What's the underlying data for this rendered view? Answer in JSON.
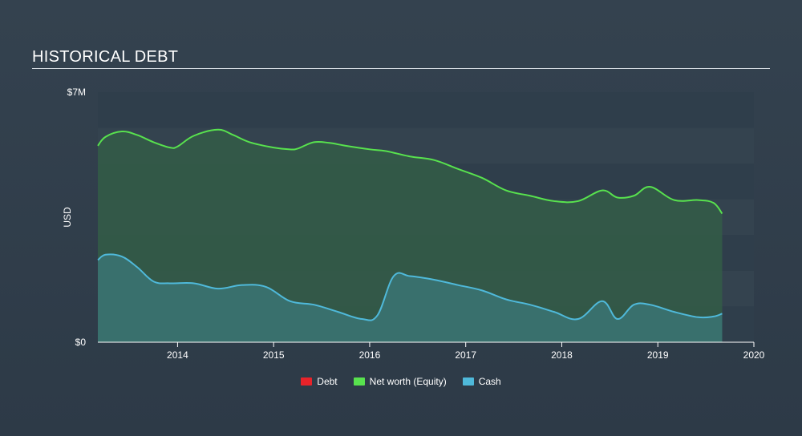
{
  "title": "HISTORICAL DEBT",
  "chart_data": {
    "type": "area",
    "title": "HISTORICAL DEBT",
    "ylabel": "USD",
    "xlabel": "",
    "ylim": [
      0,
      7000000
    ],
    "xlim": [
      2013.17,
      2020.0
    ],
    "y_tick_labels": [
      "$0",
      "$7M"
    ],
    "x_tick_labels": [
      "2014",
      "2015",
      "2016",
      "2017",
      "2018",
      "2019",
      "2020"
    ],
    "x_ticks": [
      2014,
      2015,
      2016,
      2017,
      2018,
      2019,
      2020
    ],
    "grid": true,
    "legend_position": "bottom",
    "colors": {
      "Debt": "#e8232a",
      "Net worth (Equity)": "#58e24e",
      "Cash": "#4fb9da",
      "equity_fill": "#335b47",
      "cash_fill": "#3b7474"
    },
    "series": [
      {
        "name": "Debt",
        "x": [],
        "values": []
      },
      {
        "name": "Net worth (Equity)",
        "x": [
          2013.17,
          2013.25,
          2013.42,
          2013.58,
          2013.75,
          2013.92,
          2014.0,
          2014.17,
          2014.42,
          2014.58,
          2014.75,
          2015.0,
          2015.17,
          2015.25,
          2015.42,
          2015.58,
          2015.75,
          2016.0,
          2016.17,
          2016.42,
          2016.67,
          2016.92,
          2017.17,
          2017.42,
          2017.67,
          2017.92,
          2018.17,
          2018.42,
          2018.58,
          2018.75,
          2018.92,
          2019.17,
          2019.42,
          2019.58,
          2019.67
        ],
        "values": [
          5500000,
          5750000,
          5900000,
          5800000,
          5600000,
          5450000,
          5480000,
          5780000,
          5950000,
          5800000,
          5600000,
          5450000,
          5400000,
          5420000,
          5600000,
          5580000,
          5500000,
          5400000,
          5350000,
          5200000,
          5100000,
          4850000,
          4600000,
          4250000,
          4100000,
          3950000,
          3950000,
          4250000,
          4050000,
          4100000,
          4350000,
          3980000,
          3980000,
          3900000,
          3600000
        ]
      },
      {
        "name": "Cash",
        "x": [
          2013.17,
          2013.25,
          2013.42,
          2013.58,
          2013.75,
          2013.92,
          2014.17,
          2014.42,
          2014.67,
          2014.92,
          2015.17,
          2015.42,
          2015.67,
          2015.92,
          2016.08,
          2016.25,
          2016.42,
          2016.67,
          2016.92,
          2017.17,
          2017.42,
          2017.67,
          2017.92,
          2018.17,
          2018.42,
          2018.58,
          2018.75,
          2018.92,
          2019.17,
          2019.42,
          2019.58,
          2019.67
        ],
        "values": [
          2300000,
          2450000,
          2400000,
          2100000,
          1700000,
          1650000,
          1650000,
          1500000,
          1600000,
          1550000,
          1150000,
          1050000,
          850000,
          650000,
          750000,
          1850000,
          1850000,
          1750000,
          1600000,
          1450000,
          1200000,
          1050000,
          850000,
          650000,
          1150000,
          650000,
          1050000,
          1050000,
          850000,
          700000,
          720000,
          800000
        ]
      }
    ]
  },
  "legend": [
    {
      "label": "Debt",
      "color": "#e8232a"
    },
    {
      "label": "Net worth (Equity)",
      "color": "#58e24e"
    },
    {
      "label": "Cash",
      "color": "#4fb9da"
    }
  ]
}
